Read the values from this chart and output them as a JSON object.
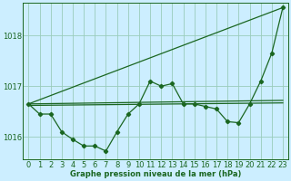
{
  "background_color": "#cceeff",
  "plot_bg_color": "#cceeff",
  "grid_color": "#99ccbb",
  "line_color": "#1a6620",
  "title": "Graphe pression niveau de la mer (hPa)",
  "xlabel_fontsize": 6,
  "ylabel_fontsize": 6,
  "title_fontsize": 6,
  "xlim": [
    -0.5,
    23.5
  ],
  "ylim": [
    1015.55,
    1018.65
  ],
  "yticks": [
    1016,
    1017,
    1018
  ],
  "xticks": [
    0,
    1,
    2,
    3,
    4,
    5,
    6,
    7,
    8,
    9,
    10,
    11,
    12,
    13,
    14,
    15,
    16,
    17,
    18,
    19,
    20,
    21,
    22,
    23
  ],
  "series": [
    {
      "x": [
        0,
        1,
        2,
        3,
        4,
        5,
        6,
        7,
        8,
        9,
        10,
        11,
        12,
        13,
        14,
        15,
        16,
        17,
        18,
        19,
        20,
        21,
        22,
        23
      ],
      "y": [
        1016.65,
        1016.45,
        1016.45,
        1016.1,
        1015.95,
        1015.82,
        1015.82,
        1015.72,
        1016.1,
        1016.45,
        1016.65,
        1017.1,
        1017.0,
        1017.05,
        1016.65,
        1016.65,
        1016.6,
        1016.55,
        1016.3,
        1016.28,
        1016.65,
        1017.1,
        1017.65,
        1018.55
      ],
      "marker": "D",
      "linewidth": 0.9,
      "markersize": 2.2
    },
    {
      "x": [
        0,
        23
      ],
      "y": [
        1016.65,
        1018.55
      ],
      "marker": null,
      "linewidth": 0.9,
      "markersize": 0
    },
    {
      "x": [
        0,
        23
      ],
      "y": [
        1016.65,
        1016.72
      ],
      "marker": null,
      "linewidth": 0.9,
      "markersize": 0
    },
    {
      "x": [
        0,
        23
      ],
      "y": [
        1016.62,
        1016.67
      ],
      "marker": null,
      "linewidth": 0.9,
      "markersize": 0
    }
  ]
}
